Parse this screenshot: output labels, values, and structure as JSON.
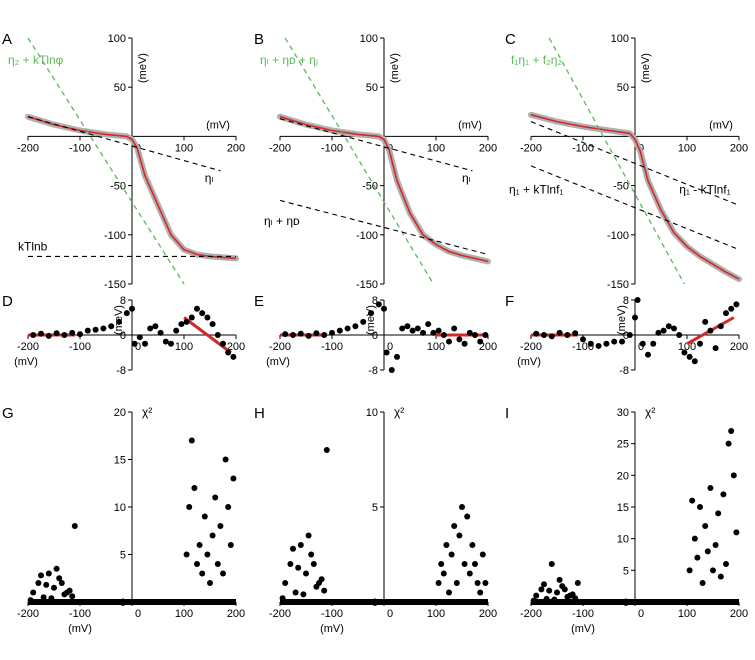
{
  "panels": [
    {
      "id": "A",
      "letter": "A",
      "kind": "fit",
      "xticks": [
        "-200",
        "-100",
        "0",
        "100",
        "200"
      ],
      "yticks": [
        "100",
        "50",
        "-50",
        "-100",
        "-150"
      ],
      "x_unit": "(mV)",
      "y_unit": "(meV)",
      "green_label": "η₂ + kTlnφ",
      "black_labels": [
        "ηₗ",
        "kTlnb"
      ]
    },
    {
      "id": "B",
      "letter": "B",
      "kind": "fit",
      "xticks": [
        "-200",
        "-100",
        "0",
        "100",
        "200"
      ],
      "yticks": [
        "100",
        "50",
        "-50",
        "-100",
        "-150"
      ],
      "x_unit": "(mV)",
      "y_unit": "(meV)",
      "green_label": "ηₗ + ηᴅ + ηⱼ",
      "black_labels": [
        "ηₗ",
        "ηₗ + ηᴅ"
      ]
    },
    {
      "id": "C",
      "letter": "C",
      "kind": "fit",
      "xticks": [
        "-200",
        "-100",
        "0",
        "100",
        "200"
      ],
      "yticks": [
        "100",
        "50",
        "-50",
        "-100",
        "-150"
      ],
      "x_unit": "(mV)",
      "y_unit": "(meV)",
      "green_label": "f₁η₁ + f₂η₂",
      "black_labels": [
        "η₁ + kTlnf₁",
        "η₁ - kTlnf₁"
      ]
    },
    {
      "id": "D",
      "letter": "D",
      "kind": "residual",
      "xticks": [
        "-200",
        "-100",
        "0",
        "100",
        "200"
      ],
      "yticks": [
        "8",
        "0",
        "-8"
      ],
      "x_unit": "(mV)",
      "y_unit": "(meV)"
    },
    {
      "id": "E",
      "letter": "E",
      "kind": "residual",
      "xticks": [
        "-200",
        "-100",
        "0",
        "100",
        "200"
      ],
      "yticks": [
        "8",
        "0",
        "-8"
      ],
      "x_unit": "(mV)",
      "y_unit": "(meV)"
    },
    {
      "id": "F",
      "letter": "F",
      "kind": "residual",
      "xticks": [
        "-200",
        "-100",
        "0",
        "100",
        "200"
      ],
      "yticks": [
        "8",
        "0",
        "-8"
      ],
      "x_unit": "(mV)",
      "y_unit": "(meV)"
    },
    {
      "id": "G",
      "letter": "G",
      "kind": "chi2",
      "xticks": [
        "-200",
        "-100",
        "0",
        "100",
        "200"
      ],
      "yticks": [
        "20",
        "15",
        "10",
        "5",
        "0"
      ],
      "x_unit": "(mV)",
      "y_label": "χ²"
    },
    {
      "id": "H",
      "letter": "H",
      "kind": "chi2",
      "xticks": [
        "-200",
        "-100",
        "0",
        "100",
        "200"
      ],
      "yticks": [
        "10",
        "5",
        "0"
      ],
      "x_unit": "(mV)",
      "y_label": "χ²"
    },
    {
      "id": "I",
      "letter": "I",
      "kind": "chi2",
      "xticks": [
        "-200",
        "-100",
        "0",
        "100",
        "200"
      ],
      "yticks": [
        "30",
        "25",
        "20",
        "15",
        "10",
        "5",
        "0"
      ],
      "x_unit": "(mV)",
      "y_label": "χ²"
    }
  ],
  "chart_data": [
    {
      "type": "line",
      "panel": "A",
      "xlim": [
        -200,
        200
      ],
      "ylim": [
        -150,
        100
      ],
      "data_points": {
        "x": [
          -200,
          -150,
          -100,
          -50,
          -10,
          0,
          10,
          25,
          50,
          75,
          100,
          125,
          150,
          175,
          200
        ],
        "y": [
          20,
          12,
          6,
          2,
          0,
          -3,
          -12,
          -40,
          -70,
          -100,
          -115,
          -120,
          -122,
          -123,
          -124
        ]
      },
      "fit_red": {
        "x": [
          -200,
          -150,
          -100,
          -50,
          -10,
          0,
          10,
          25,
          50,
          75,
          100,
          125,
          150,
          175,
          200
        ],
        "y": [
          20,
          12,
          6,
          2,
          0,
          -3,
          -12,
          -40,
          -70,
          -100,
          -115,
          -120,
          -122,
          -123,
          -124
        ]
      },
      "green_dashed": {
        "x": [
          -200,
          100
        ],
        "y": [
          100,
          -150
        ]
      },
      "black_dashed": [
        {
          "x": [
            -200,
            170
          ],
          "y": [
            20,
            -35
          ]
        },
        {
          "x": [
            -200,
            200
          ],
          "y": [
            -122,
            -122
          ]
        }
      ]
    },
    {
      "type": "line",
      "panel": "B",
      "xlim": [
        -200,
        200
      ],
      "ylim": [
        -150,
        100
      ],
      "data_points": {
        "x": [
          -200,
          -150,
          -100,
          -50,
          -10,
          0,
          10,
          25,
          50,
          75,
          100,
          125,
          150,
          175,
          200
        ],
        "y": [
          20,
          12,
          6,
          2,
          0,
          -3,
          -14,
          -45,
          -78,
          -100,
          -110,
          -117,
          -121,
          -124,
          -127
        ]
      },
      "fit_red": {
        "x": [
          -200,
          -150,
          -100,
          -50,
          -10,
          0,
          10,
          25,
          50,
          75,
          100,
          125,
          150,
          175,
          200
        ],
        "y": [
          20,
          12,
          6,
          2,
          0,
          -3,
          -14,
          -45,
          -78,
          -100,
          -110,
          -117,
          -121,
          -124,
          -127
        ]
      },
      "green_dashed": {
        "x": [
          -190,
          95
        ],
        "y": [
          100,
          -150
        ]
      },
      "black_dashed": [
        {
          "x": [
            -200,
            170
          ],
          "y": [
            18,
            -35
          ]
        },
        {
          "x": [
            -200,
            200
          ],
          "y": [
            -65,
            -120
          ]
        }
      ]
    },
    {
      "type": "line",
      "panel": "C",
      "xlim": [
        -200,
        200
      ],
      "ylim": [
        -150,
        100
      ],
      "data_points": {
        "x": [
          -200,
          -150,
          -100,
          -50,
          -10,
          0,
          10,
          25,
          50,
          75,
          100,
          125,
          150,
          175,
          200
        ],
        "y": [
          22,
          15,
          10,
          6,
          3,
          -3,
          -15,
          -45,
          -75,
          -98,
          -112,
          -122,
          -130,
          -138,
          -145
        ]
      },
      "fit_red": {
        "x": [
          -200,
          -150,
          -100,
          -50,
          -10,
          0,
          10,
          25,
          50,
          75,
          100,
          125,
          150,
          175,
          200
        ],
        "y": [
          22,
          15,
          10,
          6,
          3,
          -3,
          -15,
          -45,
          -75,
          -98,
          -112,
          -122,
          -130,
          -138,
          -145
        ]
      },
      "green_dashed": {
        "x": [
          -165,
          95
        ],
        "y": [
          100,
          -150
        ]
      },
      "black_dashed": [
        {
          "x": [
            -200,
            200
          ],
          "y": [
            15,
            -70
          ]
        },
        {
          "x": [
            -200,
            200
          ],
          "y": [
            -30,
            -115
          ]
        }
      ]
    },
    {
      "type": "scatter",
      "panel": "D",
      "xlim": [
        -200,
        200
      ],
      "ylim": [
        -8,
        8
      ],
      "x": [
        -190,
        -175,
        -160,
        -145,
        -130,
        -115,
        -100,
        -85,
        -70,
        -55,
        -40,
        -25,
        -10,
        0,
        5,
        15,
        25,
        35,
        45,
        55,
        65,
        75,
        85,
        95,
        105,
        115,
        125,
        135,
        145,
        155,
        165,
        175,
        185,
        195
      ],
      "y": [
        0,
        0.3,
        -0.2,
        0.4,
        0,
        0.5,
        0.2,
        1,
        1.2,
        1.5,
        2,
        3,
        5,
        6,
        -2,
        -0.5,
        -2,
        1.5,
        2,
        0.5,
        -1.5,
        -2,
        1,
        2.5,
        3,
        4,
        6,
        5,
        4,
        2.5,
        0,
        -2,
        -4,
        -5
      ],
      "fits": [
        {
          "x": [
            -200,
            -110
          ],
          "y": [
            0,
            0
          ]
        },
        {
          "x": [
            100,
            190
          ],
          "y": [
            4,
            -4
          ]
        }
      ]
    },
    {
      "type": "scatter",
      "panel": "E",
      "xlim": [
        -200,
        200
      ],
      "ylim": [
        -8,
        8
      ],
      "x": [
        -190,
        -175,
        -160,
        -145,
        -130,
        -115,
        -100,
        -85,
        -70,
        -55,
        -40,
        -25,
        -10,
        0,
        5,
        15,
        25,
        35,
        45,
        55,
        65,
        75,
        85,
        95,
        105,
        115,
        125,
        135,
        145,
        155,
        165,
        175,
        185,
        195
      ],
      "y": [
        0.2,
        0,
        0.3,
        -0.2,
        0.4,
        0,
        0.5,
        1,
        1.5,
        2,
        3,
        5,
        7,
        6,
        -4,
        -8,
        -5,
        1.5,
        2,
        1,
        1.5,
        0.5,
        2.5,
        0.5,
        1,
        0,
        -1.5,
        1.5,
        -1,
        -2,
        0.5,
        0,
        -1.5,
        0
      ],
      "fits": [
        {
          "x": [
            -200,
            -110
          ],
          "y": [
            0,
            0
          ]
        },
        {
          "x": [
            100,
            190
          ],
          "y": [
            0,
            0
          ]
        }
      ]
    },
    {
      "type": "scatter",
      "panel": "F",
      "xlim": [
        -200,
        200
      ],
      "ylim": [
        -8,
        8
      ],
      "x": [
        -190,
        -175,
        -160,
        -145,
        -130,
        -115,
        -100,
        -85,
        -70,
        -55,
        -40,
        -25,
        -10,
        0,
        5,
        15,
        25,
        35,
        45,
        55,
        65,
        75,
        85,
        95,
        105,
        115,
        125,
        135,
        145,
        155,
        165,
        175,
        185,
        195
      ],
      "y": [
        0.3,
        0,
        -0.3,
        0.5,
        0,
        0.4,
        -1,
        -2,
        -2.5,
        -2,
        -1.5,
        -1.5,
        0,
        4,
        8,
        -2,
        -4.5,
        -2,
        0.5,
        1,
        2,
        1.5,
        0,
        -4,
        -5,
        -6,
        -2,
        3,
        1,
        -3,
        2,
        5,
        6,
        7
      ],
      "fits": [
        {
          "x": [
            -200,
            -110
          ],
          "y": [
            0,
            0
          ]
        },
        {
          "x": [
            100,
            190
          ],
          "y": [
            -2,
            4
          ]
        }
      ]
    },
    {
      "type": "scatter",
      "panel": "G",
      "xlim": [
        -200,
        200
      ],
      "ylim": [
        0,
        20
      ],
      "x": [
        -190,
        -180,
        -170,
        -160,
        -150,
        -140,
        -130,
        -120,
        -110,
        -195,
        -175,
        -165,
        -155,
        -145,
        -135,
        -125,
        -115,
        105,
        110,
        115,
        120,
        125,
        130,
        135,
        140,
        145,
        150,
        155,
        160,
        165,
        170,
        175,
        180,
        185,
        190,
        195
      ],
      "y": [
        1,
        2,
        0.5,
        3,
        1.5,
        2.5,
        0.8,
        1.2,
        8,
        0.2,
        2.8,
        1.8,
        0.4,
        3.5,
        2,
        1,
        0.6,
        5,
        10,
        17,
        12,
        4,
        6,
        3,
        9,
        5,
        2,
        7,
        11,
        4,
        8,
        3,
        15,
        10,
        6,
        13
      ],
      "zero_band": {
        "x": [
          -200,
          200
        ],
        "y": 0
      }
    },
    {
      "type": "scatter",
      "panel": "H",
      "xlim": [
        -200,
        200
      ],
      "ylim": [
        0,
        10
      ],
      "x": [
        -190,
        -180,
        -170,
        -160,
        -150,
        -140,
        -130,
        -120,
        -110,
        -195,
        -175,
        -165,
        -155,
        -145,
        -135,
        -125,
        -115,
        105,
        110,
        115,
        120,
        125,
        130,
        135,
        140,
        145,
        150,
        155,
        160,
        165,
        170,
        175,
        180,
        185,
        190,
        195
      ],
      "y": [
        1,
        2,
        0.5,
        3,
        1.5,
        2.5,
        0.8,
        1.2,
        8,
        0.2,
        2.8,
        1.8,
        0.4,
        3.5,
        2,
        1,
        0.6,
        1,
        2,
        1.5,
        3,
        0.5,
        2.5,
        4,
        1,
        3.5,
        5,
        2,
        4.5,
        1.5,
        3,
        2,
        1,
        0.5,
        2.5,
        1
      ],
      "zero_band": {
        "x": [
          -200,
          200
        ],
        "y": 0
      }
    },
    {
      "type": "scatter",
      "panel": "I",
      "xlim": [
        -200,
        200
      ],
      "ylim": [
        0,
        30
      ],
      "x": [
        -190,
        -180,
        -170,
        -160,
        -150,
        -140,
        -130,
        -120,
        -110,
        -195,
        -175,
        -165,
        -155,
        -145,
        -135,
        -125,
        -115,
        105,
        110,
        115,
        120,
        125,
        130,
        135,
        140,
        145,
        150,
        155,
        160,
        165,
        170,
        175,
        180,
        185,
        190,
        195
      ],
      "y": [
        1,
        2,
        0.5,
        6,
        1.5,
        2.5,
        0.8,
        1.2,
        3,
        0.2,
        2.8,
        1.8,
        0.4,
        3.5,
        2,
        1,
        0.6,
        5,
        16,
        10,
        7,
        15,
        3,
        12,
        8,
        18,
        5,
        9,
        14,
        4,
        17,
        6,
        25,
        27,
        20,
        11
      ],
      "zero_band": {
        "x": [
          -200,
          200
        ],
        "y": 0
      }
    }
  ]
}
